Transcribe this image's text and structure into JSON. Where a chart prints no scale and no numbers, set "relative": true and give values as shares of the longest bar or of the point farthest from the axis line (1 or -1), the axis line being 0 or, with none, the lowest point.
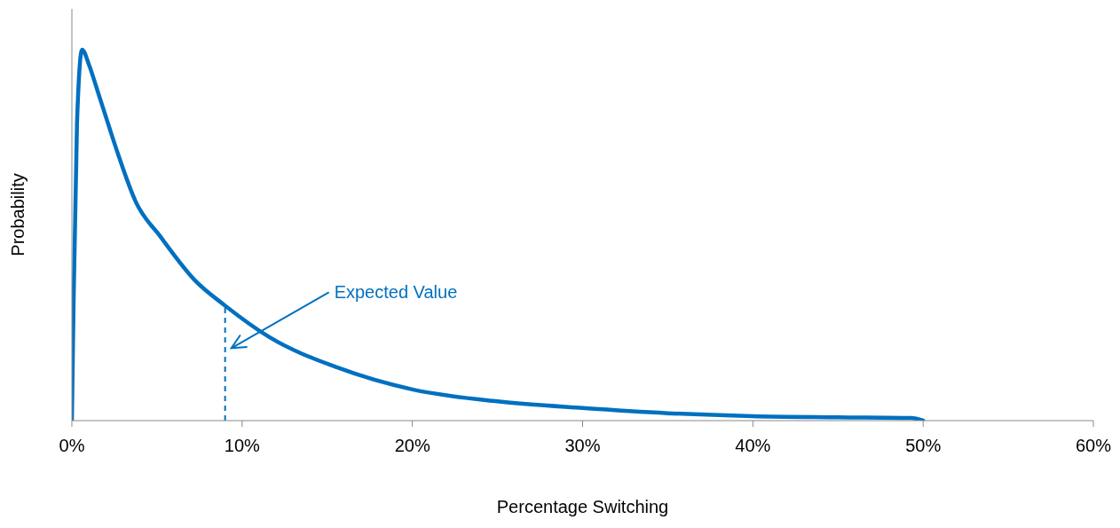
{
  "chart_data": {
    "type": "line",
    "relative": true,
    "xlabel": "Percentage Switching",
    "ylabel": "Probability",
    "xlim": [
      0,
      60
    ],
    "xticks": [
      {
        "value": 0,
        "label": "0%"
      },
      {
        "value": 10,
        "label": "10%"
      },
      {
        "value": 20,
        "label": "20%"
      },
      {
        "value": 30,
        "label": "30%"
      },
      {
        "value": 40,
        "label": "40%"
      },
      {
        "value": 50,
        "label": "50%"
      },
      {
        "value": 60,
        "label": "60%"
      }
    ],
    "series": [
      {
        "color": "#0070c0",
        "x": [
          0,
          0.1,
          0.3,
          0.6,
          1,
          1.5,
          2.2,
          2.7,
          3.75,
          5.2,
          7.25,
          9,
          11.6,
          15.6,
          20,
          25,
          30,
          35,
          40,
          45,
          49.3,
          50
        ],
        "values": [
          0,
          0.32,
          0.8,
          1,
          0.96,
          0.89,
          0.79,
          0.72,
          0.59,
          0.496,
          0.377,
          0.31,
          0.225,
          0.143,
          0.084,
          0.052,
          0.034,
          0.02,
          0.012,
          0.009,
          0.007,
          0
        ]
      }
    ],
    "ref_lines": [
      {
        "axis": "x",
        "value": 9,
        "color": "#0070c0",
        "line_style": "dashed"
      }
    ],
    "annotations": [
      "Expected Value"
    ],
    "grid": false,
    "legend": false,
    "marker": "none",
    "line_style": "solid"
  }
}
